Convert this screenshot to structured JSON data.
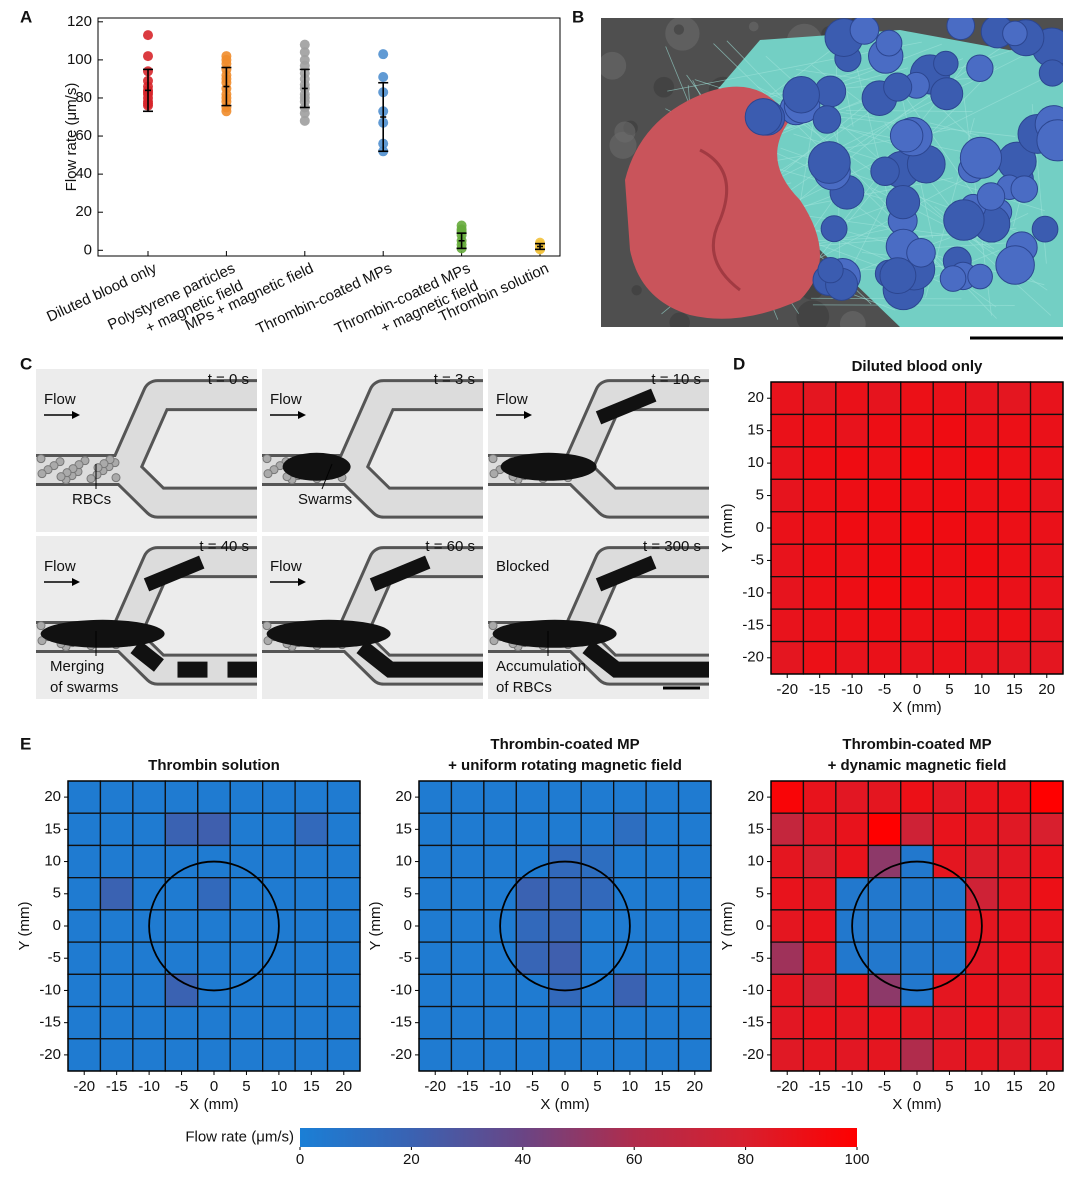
{
  "chart_data": [
    {
      "type": "dot",
      "panel": "A",
      "ylabel": "Flow rate (μm/s)",
      "categories": [
        [
          "Diluted blood only"
        ],
        [
          "Polystyrene particles",
          "+ magnetic field"
        ],
        [
          "MPs + magnetic field"
        ],
        [
          "Thrombin-coated MPs"
        ],
        [
          "Thrombin-coated MPs",
          "+ magnetic field"
        ],
        [
          "Thrombin solution"
        ]
      ],
      "colors": [
        "#d7262b",
        "#ef8c2b",
        "#9f9f9f",
        "#4f8fcf",
        "#66ab3c",
        "#f2c23c"
      ],
      "points": [
        [
          113,
          102,
          94,
          89,
          86,
          84,
          83,
          82,
          80,
          78,
          77,
          76
        ],
        [
          102,
          100,
          98,
          95,
          92,
          90,
          88,
          85,
          82,
          80,
          78,
          75,
          73
        ],
        [
          108,
          104,
          100,
          97,
          93,
          90,
          87,
          85,
          82,
          80,
          78,
          75,
          72,
          68
        ],
        [
          103,
          91,
          83,
          73,
          67,
          56,
          52
        ],
        [
          13,
          11,
          10,
          8,
          5,
          3,
          1
        ],
        [
          4,
          3,
          2,
          1,
          0.5
        ]
      ],
      "means": [
        84,
        86,
        85,
        70,
        5,
        2
      ],
      "errors": [
        11,
        10,
        10,
        18,
        4,
        1.5
      ],
      "ylim": [
        -3,
        122
      ],
      "yticks": [
        0,
        20,
        40,
        60,
        80,
        100,
        120
      ]
    },
    {
      "type": "heatmap",
      "panel": "D",
      "title": [
        "Diluted blood only"
      ],
      "xlabel": "X (mm)",
      "ylabel": "Y (mm)",
      "x": [
        -20,
        -15,
        -10,
        -5,
        0,
        5,
        10,
        15,
        20
      ],
      "y": [
        20,
        15,
        10,
        5,
        0,
        -5,
        -10,
        -15,
        -20
      ],
      "xlim": [
        -22.5,
        22.5
      ],
      "ylim": [
        -22.5,
        22.5
      ],
      "xticks": [
        -20,
        -15,
        -10,
        -5,
        0,
        5,
        10,
        15,
        20
      ],
      "yticks": [
        -20,
        -15,
        -10,
        -5,
        0,
        5,
        10,
        15,
        20
      ],
      "z": [
        [
          88,
          86,
          89,
          87,
          90,
          89,
          87,
          86,
          88
        ],
        [
          89,
          90,
          88,
          91,
          90,
          92,
          89,
          90,
          89
        ],
        [
          88,
          91,
          92,
          90,
          93,
          91,
          92,
          90,
          89
        ],
        [
          87,
          90,
          91,
          92,
          91,
          92,
          90,
          91,
          88
        ],
        [
          89,
          90,
          92,
          91,
          93,
          92,
          91,
          90,
          89
        ],
        [
          88,
          91,
          90,
          92,
          92,
          91,
          92,
          90,
          88
        ],
        [
          87,
          90,
          91,
          93,
          92,
          90,
          91,
          89,
          88
        ],
        [
          88,
          89,
          90,
          91,
          90,
          91,
          89,
          90,
          87
        ],
        [
          86,
          90,
          88,
          89,
          88,
          89,
          87,
          86,
          86
        ]
      ]
    },
    {
      "type": "heatmap",
      "panel": "E",
      "title": [
        "Thrombin solution"
      ],
      "xlabel": "X (mm)",
      "ylabel": "Y (mm)",
      "x": [
        -20,
        -15,
        -10,
        -5,
        0,
        5,
        10,
        15,
        20
      ],
      "y": [
        20,
        15,
        10,
        5,
        0,
        -5,
        -10,
        -15,
        -20
      ],
      "xlim": [
        -22.5,
        22.5
      ],
      "ylim": [
        -22.5,
        22.5
      ],
      "xticks": [
        -20,
        -15,
        -10,
        -5,
        0,
        5,
        10,
        15,
        20
      ],
      "yticks": [
        -20,
        -15,
        -10,
        -5,
        0,
        5,
        10,
        15,
        20
      ],
      "circle": {
        "cx": 0,
        "cy": 0,
        "r": 10
      },
      "z": [
        [
          3,
          3,
          3,
          3,
          3,
          3,
          3,
          3,
          3
        ],
        [
          3,
          3,
          3,
          20,
          22,
          3,
          3,
          15,
          3
        ],
        [
          3,
          3,
          3,
          3,
          3,
          3,
          3,
          3,
          3
        ],
        [
          3,
          20,
          3,
          3,
          15,
          3,
          3,
          3,
          3
        ],
        [
          3,
          3,
          3,
          3,
          3,
          3,
          3,
          3,
          3
        ],
        [
          3,
          3,
          3,
          3,
          3,
          3,
          3,
          3,
          3
        ],
        [
          3,
          3,
          3,
          20,
          3,
          3,
          3,
          3,
          3
        ],
        [
          3,
          3,
          3,
          3,
          3,
          3,
          3,
          3,
          3
        ],
        [
          3,
          3,
          3,
          3,
          3,
          3,
          3,
          3,
          3
        ]
      ]
    },
    {
      "type": "heatmap",
      "title": [
        "Thrombin-coated MP",
        "+ uniform rotating magnetic field"
      ],
      "xlabel": "X (mm)",
      "ylabel": "Y (mm)",
      "x": [
        -20,
        -15,
        -10,
        -5,
        0,
        5,
        10,
        15,
        20
      ],
      "y": [
        20,
        15,
        10,
        5,
        0,
        -5,
        -10,
        -15,
        -20
      ],
      "xlim": [
        -22.5,
        22.5
      ],
      "ylim": [
        -22.5,
        22.5
      ],
      "xticks": [
        -20,
        -15,
        -10,
        -5,
        0,
        5,
        10,
        15,
        20
      ],
      "yticks": [
        -20,
        -15,
        -10,
        -5,
        0,
        5,
        10,
        15,
        20
      ],
      "circle": {
        "cx": 0,
        "cy": 0,
        "r": 10
      },
      "z": [
        [
          3,
          3,
          3,
          3,
          3,
          3,
          3,
          3,
          3
        ],
        [
          3,
          3,
          3,
          3,
          3,
          3,
          12,
          3,
          3
        ],
        [
          3,
          3,
          3,
          3,
          15,
          12,
          3,
          3,
          3
        ],
        [
          3,
          3,
          3,
          20,
          18,
          15,
          3,
          3,
          3
        ],
        [
          3,
          3,
          3,
          15,
          18,
          3,
          3,
          3,
          3
        ],
        [
          3,
          3,
          3,
          18,
          22,
          3,
          3,
          3,
          3
        ],
        [
          3,
          3,
          3,
          3,
          15,
          3,
          20,
          3,
          3
        ],
        [
          3,
          3,
          3,
          3,
          3,
          3,
          3,
          3,
          3
        ],
        [
          3,
          3,
          3,
          3,
          3,
          3,
          3,
          3,
          3
        ]
      ]
    },
    {
      "type": "heatmap",
      "title": [
        "Thrombin-coated MP",
        "+ dynamic magnetic field"
      ],
      "xlabel": "X (mm)",
      "ylabel": "Y (mm)",
      "x": [
        -20,
        -15,
        -10,
        -5,
        0,
        5,
        10,
        15,
        20
      ],
      "y": [
        20,
        15,
        10,
        5,
        0,
        -5,
        -10,
        -15,
        -20
      ],
      "xlim": [
        -22.5,
        22.5
      ],
      "ylim": [
        -22.5,
        22.5
      ],
      "xticks": [
        -20,
        -15,
        -10,
        -5,
        0,
        5,
        10,
        15,
        20
      ],
      "yticks": [
        -20,
        -15,
        -10,
        -5,
        0,
        5,
        10,
        15,
        20
      ],
      "circle": {
        "cx": 0,
        "cy": 0,
        "r": 10
      },
      "z": [
        [
          97,
          88,
          85,
          86,
          90,
          85,
          88,
          89,
          100
        ],
        [
          70,
          85,
          88,
          100,
          75,
          88,
          86,
          84,
          80
        ],
        [
          86,
          80,
          88,
          50,
          5,
          86,
          82,
          85,
          88
        ],
        [
          88,
          86,
          5,
          5,
          5,
          5,
          75,
          86,
          90
        ],
        [
          86,
          88,
          5,
          5,
          5,
          5,
          86,
          87,
          88
        ],
        [
          55,
          86,
          5,
          5,
          5,
          5,
          85,
          88,
          86
        ],
        [
          86,
          75,
          88,
          50,
          5,
          86,
          88,
          85,
          87
        ],
        [
          85,
          88,
          86,
          88,
          86,
          85,
          88,
          84,
          86
        ],
        [
          84,
          86,
          85,
          86,
          60,
          85,
          86,
          84,
          85
        ]
      ]
    },
    {
      "type": "colorbar",
      "label": "Flow rate (μm/s)",
      "lim": [
        0,
        100
      ],
      "ticks": [
        0,
        20,
        40,
        60,
        80,
        100
      ],
      "colors": [
        "#1a7fd6",
        "#3a62b2",
        "#6a4585",
        "#b02c4c",
        "#d81f2e",
        "#ff0000"
      ]
    }
  ],
  "sem": {
    "panel": "B"
  },
  "micrographs": {
    "panel": "C",
    "frames": [
      {
        "time": "t = 0 s",
        "status": "Flow",
        "note": [
          "RBCs"
        ]
      },
      {
        "time": "t = 3 s",
        "status": "Flow",
        "note": [
          "Swarms"
        ]
      },
      {
        "time": "t = 10 s",
        "status": "Flow",
        "note": []
      },
      {
        "time": "t = 40 s",
        "status": "Flow",
        "note": [
          "Merging",
          "of swarms"
        ]
      },
      {
        "time": "t = 60 s",
        "status": "Flow",
        "note": []
      },
      {
        "time": "t = 300 s",
        "status": "Blocked",
        "note": [
          "Accumulation",
          "of RBCs"
        ]
      }
    ]
  }
}
